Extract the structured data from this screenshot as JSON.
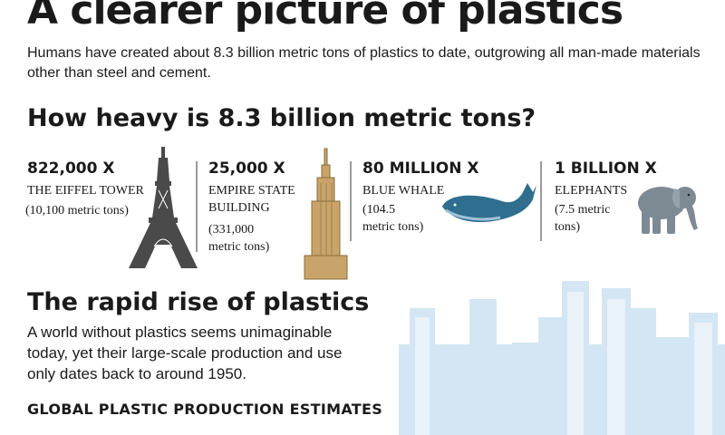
{
  "title": "A clearer picture of plastics",
  "intro": "Humans have created about 8.3 billion metric tons of plastics to date, outgrowing all man-made materials other than steel and cement.",
  "heavy_heading": "How heavy is 8.3 billion metric tons?",
  "comparisons": [
    {
      "count": "822,000 X",
      "label_lines": [
        "THE EIFFEL TOWER"
      ],
      "note_lines": [
        "(10,100 metric tons)"
      ],
      "icon": "eiffel-tower-icon"
    },
    {
      "count": "25,000 X",
      "label_lines": [
        "EMPIRE STATE",
        "BUILDING"
      ],
      "note_lines": [
        "(331,000",
        "metric tons)"
      ],
      "icon": "empire-state-building-icon"
    },
    {
      "count": "80 MILLION X",
      "label_lines": [
        "BLUE WHALE"
      ],
      "note_lines": [
        "(104.5",
        "metric tons)"
      ],
      "icon": "blue-whale-icon"
    },
    {
      "count": "1 BILLION X",
      "label_lines": [
        "ELEPHANTS"
      ],
      "note_lines": [
        "(7.5 metric",
        "tons)"
      ],
      "icon": "elephant-icon"
    }
  ],
  "rise_heading": "The rapid rise of plastics",
  "rise_text": "A world without plastics seems unimaginable today, yet their large-scale production and use only dates back to around 1950.",
  "production_heading": "GLOBAL PLASTIC PRODUCTION ESTIMATES",
  "colors": {
    "text": "#1a1a1a",
    "whale": "#2f6e8e",
    "skyline": "#cfe3f1",
    "divider": "#9a9a9a"
  }
}
